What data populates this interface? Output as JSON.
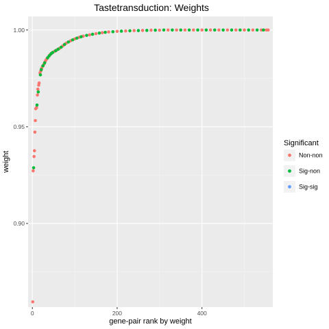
{
  "chart_data": {
    "type": "scatter",
    "title": "Tastetransduction: Weights",
    "xlabel": "gene-pair rank by weight",
    "ylabel": "weight",
    "xlim": [
      -10,
      567
    ],
    "ylim": [
      0.8568,
      1.007
    ],
    "x_ticks": [
      0,
      200,
      400
    ],
    "x_tick_labels": [
      "0",
      "200",
      "400"
    ],
    "y_ticks": [
      0.9,
      0.95,
      1.0
    ],
    "y_tick_labels": [
      "0.90",
      "0.95",
      "1.00"
    ],
    "grid": true,
    "legend": {
      "title": "Significant",
      "placement": "right",
      "entries": [
        {
          "label": "Non-non",
          "color": "#F8766D"
        },
        {
          "label": "Sig-non",
          "color": "#00BA38"
        },
        {
          "label": "Sig-sig",
          "color": "#619CFF"
        }
      ]
    },
    "series": [
      {
        "name": "Non-non",
        "color": "#F8766D",
        "points": [
          [
            1,
            0.8595
          ],
          [
            2,
            0.9272
          ],
          [
            4,
            0.9346
          ],
          [
            5,
            0.9376
          ],
          [
            6,
            0.9472
          ],
          [
            7,
            0.9532
          ],
          [
            8,
            0.9593
          ],
          [
            10,
            0.9599
          ],
          [
            12,
            0.9664
          ],
          [
            13,
            0.9694
          ],
          [
            15,
            0.9715
          ],
          [
            16,
            0.9726
          ],
          [
            18,
            0.9778
          ],
          [
            20,
            0.9789
          ],
          [
            22,
            0.9802
          ],
          [
            24,
            0.9812
          ],
          [
            26,
            0.9818
          ],
          [
            28,
            0.9825
          ],
          [
            30,
            0.9836
          ],
          [
            32,
            0.9844
          ],
          [
            34,
            0.985
          ],
          [
            38,
            0.9862
          ],
          [
            42,
            0.9873
          ],
          [
            46,
            0.9881
          ],
          [
            52,
            0.9889
          ],
          [
            58,
            0.9897
          ],
          [
            64,
            0.9905
          ],
          [
            72,
            0.9918
          ],
          [
            80,
            0.9932
          ],
          [
            90,
            0.9944
          ],
          [
            100,
            0.9954
          ],
          [
            110,
            0.9962
          ],
          [
            120,
            0.9968
          ],
          [
            135,
            0.9975
          ],
          [
            150,
            0.9981
          ],
          [
            165,
            0.9986
          ],
          [
            180,
            0.999
          ],
          [
            200,
            0.9993
          ],
          [
            220,
            0.9995
          ],
          [
            240,
            0.9997
          ],
          [
            260,
            0.9998
          ],
          [
            280,
            0.9999
          ],
          [
            300,
            0.9999
          ],
          [
            320,
            1.0
          ],
          [
            340,
            1.0
          ],
          [
            360,
            1.0
          ],
          [
            380,
            1.0
          ],
          [
            400,
            1.0
          ],
          [
            420,
            1.0
          ],
          [
            440,
            1.0
          ],
          [
            460,
            1.0
          ],
          [
            480,
            1.0
          ],
          [
            500,
            1.0
          ],
          [
            520,
            1.0
          ],
          [
            540,
            1.0
          ],
          [
            552,
            1.0
          ],
          [
            556,
            1.0
          ]
        ]
      },
      {
        "name": "Sig-non",
        "color": "#00BA38",
        "points": [
          [
            3,
            0.9288
          ],
          [
            11,
            0.9612
          ],
          [
            14,
            0.968
          ],
          [
            19,
            0.9768
          ],
          [
            21,
            0.9795
          ],
          [
            25,
            0.9815
          ],
          [
            29,
            0.983
          ],
          [
            36,
            0.9856
          ],
          [
            40,
            0.9867
          ],
          [
            44,
            0.9877
          ],
          [
            48,
            0.9884
          ],
          [
            55,
            0.9893
          ],
          [
            61,
            0.9901
          ],
          [
            68,
            0.9911
          ],
          [
            76,
            0.9925
          ],
          [
            85,
            0.9938
          ],
          [
            95,
            0.9949
          ],
          [
            105,
            0.9958
          ],
          [
            115,
            0.9965
          ],
          [
            128,
            0.9972
          ],
          [
            142,
            0.9978
          ],
          [
            158,
            0.9984
          ],
          [
            172,
            0.9988
          ],
          [
            190,
            0.9991
          ],
          [
            210,
            0.9994
          ],
          [
            230,
            0.9996
          ],
          [
            250,
            0.9997
          ],
          [
            270,
            0.9998
          ],
          [
            290,
            0.9999
          ],
          [
            310,
            1.0
          ],
          [
            330,
            1.0
          ],
          [
            350,
            1.0
          ],
          [
            370,
            1.0
          ],
          [
            390,
            1.0
          ],
          [
            410,
            1.0
          ],
          [
            430,
            1.0
          ],
          [
            450,
            1.0
          ],
          [
            470,
            1.0
          ],
          [
            490,
            1.0
          ],
          [
            510,
            1.0
          ],
          [
            530,
            1.0
          ],
          [
            545,
            1.0
          ]
        ]
      },
      {
        "name": "Sig-sig",
        "color": "#619CFF",
        "points": []
      }
    ]
  }
}
